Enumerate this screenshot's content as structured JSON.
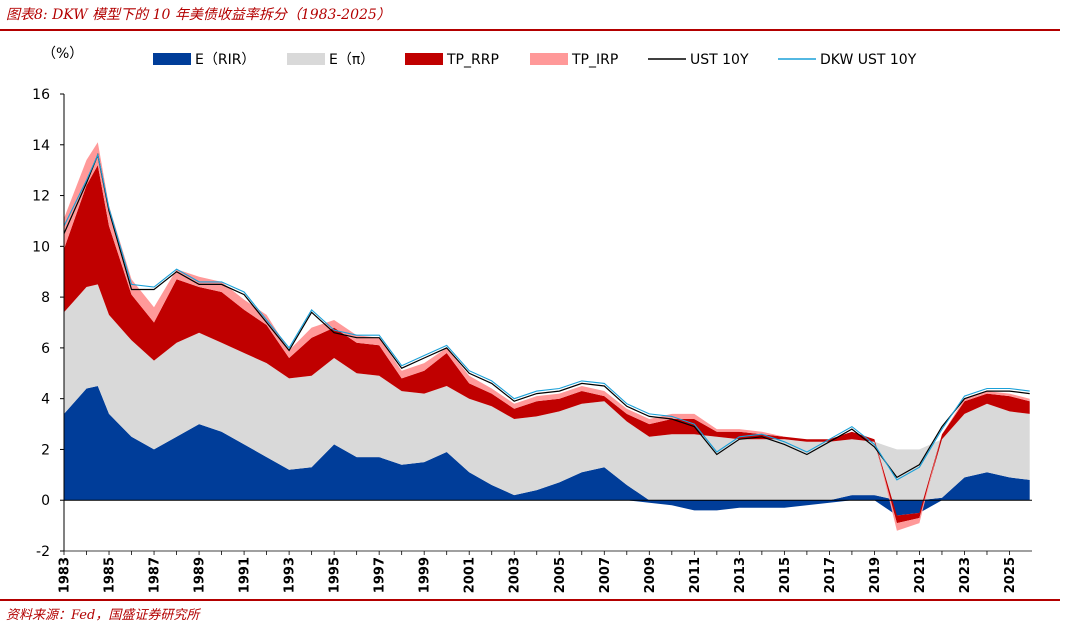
{
  "header": {
    "title": "图表8:  DKW 模型下的 10 年美债收益率拆分（1983-2025）"
  },
  "footer": {
    "source": "资料来源：Fed，国盛证券研究所"
  },
  "chart_data": {
    "type": "area",
    "title": "图表8:  DKW 模型下的 10 年美债收益率拆分（1983-2025）",
    "ylabel": "（%）",
    "xlabel": "",
    "ylim": [
      -2,
      16
    ],
    "yticks": [
      -2,
      0,
      2,
      4,
      6,
      8,
      10,
      12,
      14,
      16
    ],
    "xlim": [
      1983,
      2026
    ],
    "xticks": [
      "1983",
      "1985",
      "1987",
      "1989",
      "1991",
      "1993",
      "1995",
      "1997",
      "1999",
      "2001",
      "2003",
      "2005",
      "2007",
      "2009",
      "2011",
      "2013",
      "2015",
      "2017",
      "2019",
      "2021",
      "2023",
      "2025"
    ],
    "legend_position": "top",
    "colors": {
      "rir": "#003d99",
      "pi": "#d9d9d9",
      "rrp": "#c00000",
      "irp": "#ff9999",
      "ust": "#000000",
      "dkw": "#1aa0d8"
    },
    "legend": [
      "E（RIR）",
      "E（π）",
      "TP_RRP",
      "TP_IRP",
      "UST 10Y",
      "DKW UST 10Y"
    ],
    "x": [
      1983,
      1984,
      1984.5,
      1985,
      1986,
      1987,
      1988,
      1989,
      1990,
      1991,
      1992,
      1993,
      1994,
      1995,
      1996,
      1997,
      1998,
      1999,
      2000,
      2001,
      2002,
      2003,
      2004,
      2005,
      2006,
      2007,
      2008,
      2009,
      2010,
      2011,
      2012,
      2013,
      2014,
      2015,
      2016,
      2017,
      2018,
      2019,
      2020,
      2021,
      2022,
      2023,
      2024,
      2025,
      2025.9
    ],
    "series": [
      {
        "name": "E（RIR）",
        "key": "rir",
        "values": [
          3.4,
          4.4,
          4.5,
          3.4,
          2.5,
          2.0,
          2.5,
          3.0,
          2.7,
          2.2,
          1.7,
          1.2,
          1.3,
          2.2,
          1.7,
          1.7,
          1.4,
          1.5,
          1.9,
          1.1,
          0.6,
          0.2,
          0.4,
          0.7,
          1.1,
          1.3,
          0.6,
          -0.1,
          -0.2,
          -0.4,
          -0.4,
          -0.3,
          -0.3,
          -0.3,
          -0.2,
          -0.1,
          0.2,
          0.2,
          -0.6,
          -0.5,
          0.1,
          0.9,
          1.1,
          0.9,
          0.8
        ]
      },
      {
        "name": "E（π）",
        "key": "pi",
        "values": [
          4.0,
          4.0,
          4.0,
          3.9,
          3.8,
          3.5,
          3.7,
          3.6,
          3.5,
          3.6,
          3.7,
          3.6,
          3.6,
          3.4,
          3.3,
          3.2,
          2.9,
          2.7,
          2.6,
          2.9,
          3.1,
          3.0,
          2.9,
          2.8,
          2.7,
          2.6,
          2.5,
          2.5,
          2.6,
          2.6,
          2.5,
          2.4,
          2.4,
          2.4,
          2.3,
          2.3,
          2.2,
          2.1,
          2.0,
          2.0,
          2.3,
          2.5,
          2.7,
          2.6,
          2.6
        ]
      },
      {
        "name": "TP_RRP",
        "key": "rrp",
        "values": [
          2.5,
          4.0,
          4.7,
          3.5,
          1.8,
          1.5,
          2.5,
          1.8,
          2.0,
          1.7,
          1.5,
          0.8,
          1.5,
          1.2,
          1.2,
          1.2,
          0.5,
          0.9,
          1.3,
          0.6,
          0.5,
          0.4,
          0.6,
          0.5,
          0.5,
          0.2,
          0.3,
          0.5,
          0.6,
          0.6,
          0.2,
          0.3,
          0.2,
          0.1,
          0.1,
          0.1,
          0.3,
          0.1,
          -0.3,
          -0.2,
          0.2,
          0.5,
          0.4,
          0.6,
          0.5
        ]
      },
      {
        "name": "TP_IRP",
        "key": "irp",
        "values": [
          1.2,
          1.0,
          0.9,
          0.8,
          0.6,
          0.6,
          0.4,
          0.4,
          0.4,
          0.4,
          0.4,
          0.3,
          0.4,
          0.3,
          0.3,
          0.3,
          0.3,
          0.3,
          0.2,
          0.3,
          0.2,
          0.2,
          0.2,
          0.2,
          0.2,
          0.2,
          0.2,
          0.2,
          0.2,
          0.2,
          0.1,
          0.1,
          0.1,
          0.0,
          0.0,
          0.0,
          0.0,
          0.0,
          -0.3,
          -0.2,
          0.0,
          0.1,
          0.1,
          0.1,
          0.1
        ]
      },
      {
        "name": "UST 10Y",
        "key": "ust",
        "values": [
          10.5,
          12.5,
          13.6,
          11.4,
          8.3,
          8.3,
          9.0,
          8.5,
          8.5,
          8.1,
          7.0,
          5.9,
          7.4,
          6.6,
          6.4,
          6.4,
          5.2,
          5.6,
          6.0,
          5.0,
          4.6,
          3.9,
          4.2,
          4.3,
          4.6,
          4.5,
          3.7,
          3.3,
          3.2,
          2.9,
          1.8,
          2.4,
          2.5,
          2.2,
          1.8,
          2.3,
          2.8,
          2.1,
          0.9,
          1.4,
          2.9,
          4.0,
          4.3,
          4.3,
          4.2
        ]
      },
      {
        "name": "DKW UST 10Y",
        "key": "dkw",
        "values": [
          10.8,
          12.6,
          13.6,
          11.5,
          8.5,
          8.4,
          9.1,
          8.6,
          8.6,
          8.2,
          7.1,
          6.0,
          7.5,
          6.7,
          6.5,
          6.5,
          5.3,
          5.7,
          6.1,
          5.1,
          4.7,
          4.0,
          4.3,
          4.4,
          4.7,
          4.6,
          3.8,
          3.4,
          3.3,
          3.0,
          1.9,
          2.5,
          2.6,
          2.3,
          1.9,
          2.4,
          2.9,
          2.2,
          0.8,
          1.3,
          2.8,
          4.1,
          4.4,
          4.4,
          4.3
        ]
      }
    ]
  }
}
